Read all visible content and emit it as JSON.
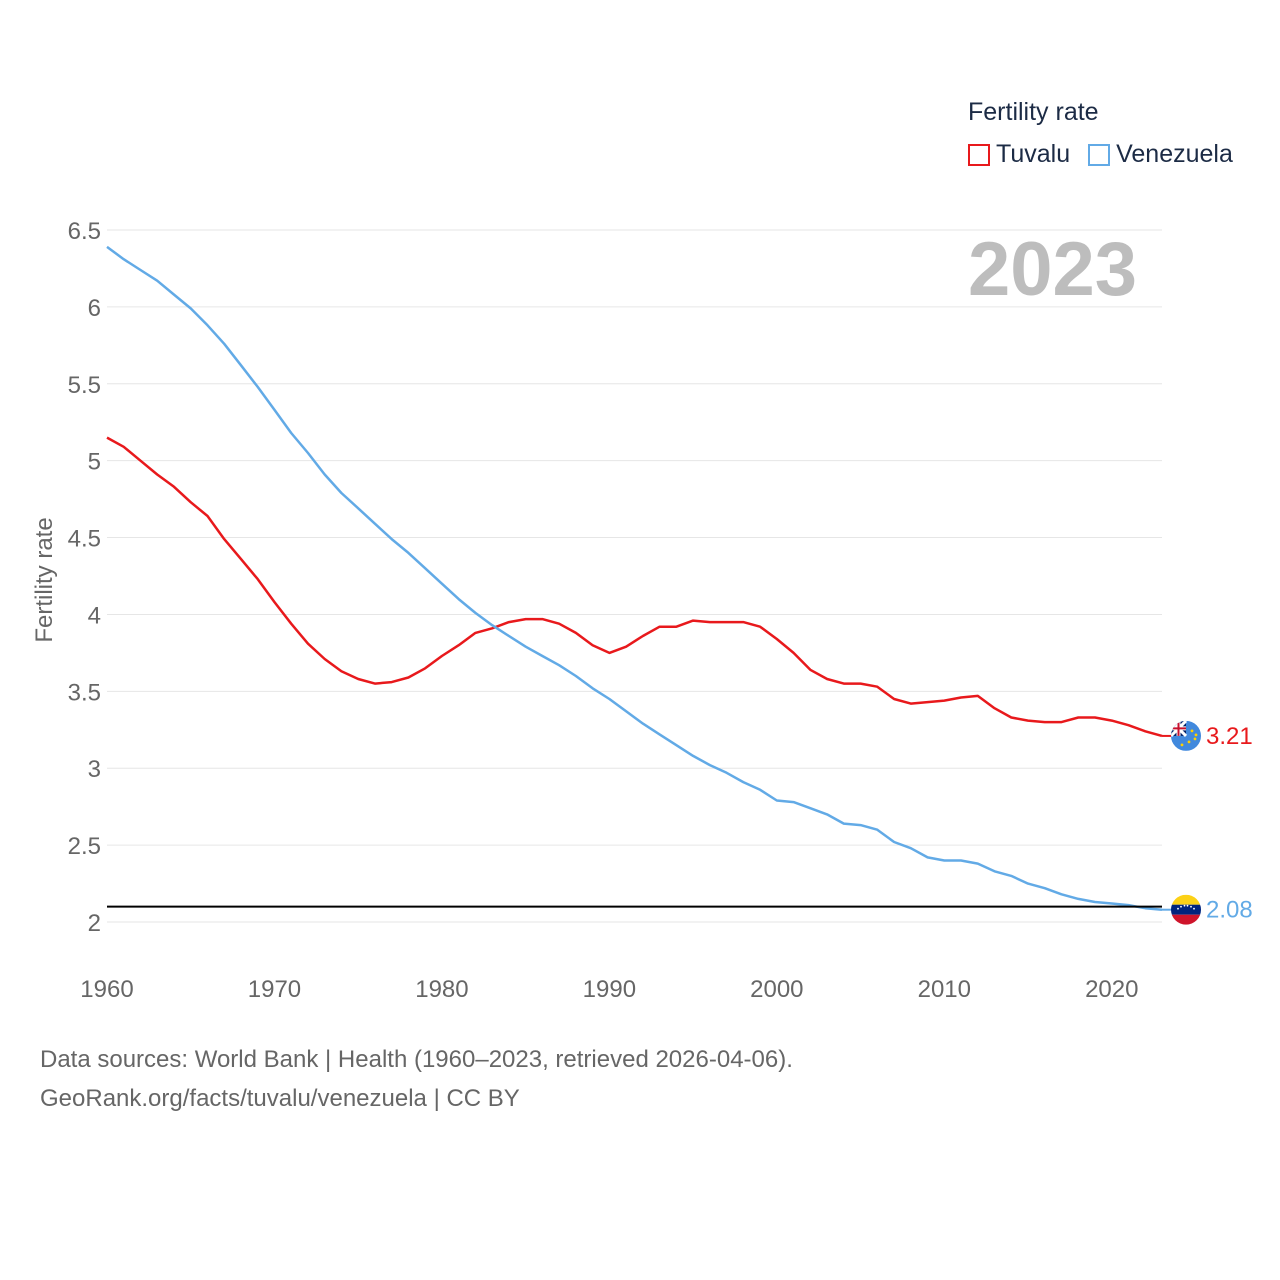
{
  "legend": {
    "title": "Fertility rate",
    "items": [
      {
        "label": "Tuvalu",
        "color": "#e8191c"
      },
      {
        "label": "Venezuela",
        "color": "#62aae6"
      }
    ]
  },
  "year_label": "2023",
  "source": {
    "line1": "Data sources: World Bank | Health (1960–2023, retrieved 2026-04-06).",
    "line2": "GeoRank.org/facts/tuvalu/venezuela | CC BY"
  },
  "chart_data": {
    "type": "line",
    "ylabel": "Fertility rate",
    "xlabel": "",
    "xlim": [
      1960,
      2023
    ],
    "ylim": [
      2,
      6.5
    ],
    "x_ticks": [
      1960,
      1970,
      1980,
      1990,
      2000,
      2010,
      2020
    ],
    "y_ticks": [
      2,
      2.5,
      3,
      3.5,
      4,
      4.5,
      5,
      5.5,
      6,
      6.5
    ],
    "reference_line": 2.1,
    "x": [
      1960,
      1961,
      1962,
      1963,
      1964,
      1965,
      1966,
      1967,
      1968,
      1969,
      1970,
      1971,
      1972,
      1973,
      1974,
      1975,
      1976,
      1977,
      1978,
      1979,
      1980,
      1981,
      1982,
      1983,
      1984,
      1985,
      1986,
      1987,
      1988,
      1989,
      1990,
      1991,
      1992,
      1993,
      1994,
      1995,
      1996,
      1997,
      1998,
      1999,
      2000,
      2001,
      2002,
      2003,
      2004,
      2005,
      2006,
      2007,
      2008,
      2009,
      2010,
      2011,
      2012,
      2013,
      2014,
      2015,
      2016,
      2017,
      2018,
      2019,
      2020,
      2021,
      2022,
      2023
    ],
    "series": [
      {
        "name": "Tuvalu",
        "color": "#e8191c",
        "end_label": "3.21",
        "values": [
          5.15,
          5.09,
          5.0,
          4.91,
          4.83,
          4.73,
          4.64,
          4.49,
          4.36,
          4.23,
          4.08,
          3.94,
          3.81,
          3.71,
          3.63,
          3.58,
          3.55,
          3.56,
          3.59,
          3.65,
          3.73,
          3.8,
          3.88,
          3.91,
          3.95,
          3.97,
          3.97,
          3.94,
          3.88,
          3.8,
          3.75,
          3.79,
          3.86,
          3.92,
          3.92,
          3.96,
          3.95,
          3.95,
          3.95,
          3.92,
          3.84,
          3.75,
          3.64,
          3.58,
          3.55,
          3.55,
          3.53,
          3.45,
          3.42,
          3.43,
          3.44,
          3.46,
          3.47,
          3.39,
          3.33,
          3.31,
          3.3,
          3.3,
          3.33,
          3.33,
          3.31,
          3.28,
          3.24,
          3.21
        ]
      },
      {
        "name": "Venezuela",
        "color": "#62aae6",
        "end_label": "2.08",
        "values": [
          6.39,
          6.31,
          6.24,
          6.17,
          6.08,
          5.99,
          5.88,
          5.76,
          5.62,
          5.48,
          5.33,
          5.18,
          5.05,
          4.91,
          4.79,
          4.69,
          4.59,
          4.49,
          4.4,
          4.3,
          4.2,
          4.1,
          4.01,
          3.93,
          3.86,
          3.79,
          3.73,
          3.67,
          3.6,
          3.52,
          3.45,
          3.37,
          3.29,
          3.22,
          3.15,
          3.08,
          3.02,
          2.97,
          2.91,
          2.86,
          2.79,
          2.78,
          2.74,
          2.7,
          2.64,
          2.63,
          2.6,
          2.52,
          2.48,
          2.42,
          2.4,
          2.4,
          2.38,
          2.33,
          2.3,
          2.25,
          2.22,
          2.18,
          2.15,
          2.13,
          2.12,
          2.11,
          2.09,
          2.08
        ]
      }
    ]
  }
}
